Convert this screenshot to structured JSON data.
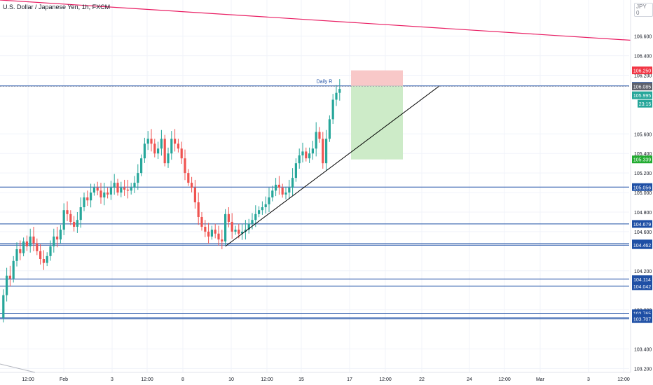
{
  "title": "U.S. Dollar / Japanese Yen, 1h, FXCM",
  "currency_badge": "JPY 0",
  "colors": {
    "up": "#26a69a",
    "down": "#ef5350",
    "hline": "#1e4fa5",
    "trendline": "#000000",
    "long_trend": "#e91e63",
    "stop_zone": "#f8c8c8",
    "target_zone": "#cdebc8"
  },
  "chart_data": {
    "type": "candlestick",
    "title": "U.S. Dollar / Japanese Yen, 1h, FXCM",
    "ylim": [
      103.16,
      106.97
    ],
    "x_ticks": [
      "12:00",
      "Feb",
      "3",
      "12:00",
      "8",
      "10",
      "12:00",
      "15",
      "17",
      "12:00",
      "22",
      "24",
      "12:00",
      "Mar",
      "3",
      "12:00"
    ],
    "y_ticks": [
      106.6,
      106.4,
      106.2,
      105.6,
      105.4,
      105.2,
      105.0,
      104.8,
      104.6,
      104.2,
      103.8,
      103.4,
      103.2
    ],
    "horizontal_levels": [
      106.091,
      105.056,
      104.679,
      104.479,
      104.462,
      104.114,
      104.042,
      103.765,
      103.719,
      103.707
    ],
    "price_labels": [
      {
        "value": 106.25,
        "text": "106.250",
        "kind": "stop"
      },
      {
        "value": 106.091,
        "text": "106.091",
        "kind": "level"
      },
      {
        "value": 106.085,
        "text": "106.085",
        "kind": "last"
      },
      {
        "value": 105.995,
        "text": "105.995",
        "kind": "current"
      },
      {
        "value": 105.339,
        "text": "105.339",
        "kind": "target"
      },
      {
        "value": 105.056,
        "text": "105.056",
        "kind": "level"
      },
      {
        "value": 104.679,
        "text": "104.679",
        "kind": "level"
      },
      {
        "value": 104.479,
        "text": "104.479",
        "kind": "level"
      },
      {
        "value": 104.462,
        "text": "104.462",
        "kind": "level"
      },
      {
        "value": 104.114,
        "text": "104.114",
        "kind": "level"
      },
      {
        "value": 104.042,
        "text": "104.042",
        "kind": "level"
      },
      {
        "value": 103.765,
        "text": "103.765",
        "kind": "level"
      },
      {
        "value": 103.719,
        "text": "103.719",
        "kind": "level"
      },
      {
        "value": 103.707,
        "text": "103.707",
        "kind": "level"
      }
    ],
    "countdown_label": "23:15",
    "annotation": {
      "text": "Daily R",
      "value": 106.091
    },
    "position": {
      "entry": 106.091,
      "stop": 106.25,
      "target": 105.339
    },
    "close_path": [
      [
        0,
        103.72
      ],
      [
        2,
        103.95
      ],
      [
        4,
        104.15
      ],
      [
        6,
        104.12
      ],
      [
        8,
        104.3
      ],
      [
        10,
        104.42
      ],
      [
        12,
        104.38
      ],
      [
        14,
        104.5
      ],
      [
        16,
        104.45
      ],
      [
        18,
        104.55
      ],
      [
        20,
        104.48
      ],
      [
        22,
        104.4
      ],
      [
        24,
        104.32
      ],
      [
        26,
        104.28
      ],
      [
        28,
        104.35
      ],
      [
        30,
        104.45
      ],
      [
        32,
        104.55
      ],
      [
        34,
        104.52
      ],
      [
        36,
        104.62
      ],
      [
        38,
        104.82
      ],
      [
        40,
        104.78
      ],
      [
        42,
        104.7
      ],
      [
        44,
        104.65
      ],
      [
        46,
        104.72
      ],
      [
        48,
        104.85
      ],
      [
        50,
        104.95
      ],
      [
        52,
        104.92
      ],
      [
        54,
        105.0
      ],
      [
        56,
        105.05
      ],
      [
        58,
        105.02
      ],
      [
        60,
        104.95
      ],
      [
        62,
        105.0
      ],
      [
        64,
        104.98
      ],
      [
        66,
        105.05
      ],
      [
        68,
        105.1
      ],
      [
        70,
        105.0
      ],
      [
        72,
        105.05
      ],
      [
        74,
        105.03
      ],
      [
        76,
        105.02
      ],
      [
        78,
        105.05
      ],
      [
        80,
        105.1
      ],
      [
        82,
        105.2
      ],
      [
        84,
        105.35
      ],
      [
        86,
        105.5
      ],
      [
        88,
        105.55
      ],
      [
        90,
        105.5
      ],
      [
        92,
        105.4
      ],
      [
        94,
        105.45
      ],
      [
        96,
        105.55
      ],
      [
        98,
        105.3
      ],
      [
        100,
        105.4
      ],
      [
        102,
        105.55
      ],
      [
        104,
        105.5
      ],
      [
        106,
        105.45
      ],
      [
        108,
        105.35
      ],
      [
        110,
        105.2
      ],
      [
        112,
        105.1
      ],
      [
        114,
        105.05
      ],
      [
        116,
        104.9
      ],
      [
        118,
        104.75
      ],
      [
        120,
        104.65
      ],
      [
        122,
        104.6
      ],
      [
        124,
        104.55
      ],
      [
        126,
        104.62
      ],
      [
        128,
        104.58
      ],
      [
        130,
        104.52
      ],
      [
        132,
        104.5
      ],
      [
        134,
        104.78
      ],
      [
        136,
        104.7
      ],
      [
        138,
        104.6
      ],
      [
        140,
        104.62
      ],
      [
        142,
        104.58
      ],
      [
        144,
        104.6
      ],
      [
        146,
        104.62
      ],
      [
        148,
        104.68
      ],
      [
        150,
        104.72
      ],
      [
        152,
        104.78
      ],
      [
        154,
        104.82
      ],
      [
        156,
        104.85
      ],
      [
        158,
        104.88
      ],
      [
        160,
        104.95
      ],
      [
        162,
        105.02
      ],
      [
        164,
        105.08
      ],
      [
        166,
        105.05
      ],
      [
        168,
        104.98
      ],
      [
        170,
        105.0
      ],
      [
        172,
        105.05
      ],
      [
        174,
        105.15
      ],
      [
        176,
        105.3
      ],
      [
        178,
        105.38
      ],
      [
        180,
        105.42
      ],
      [
        182,
        105.35
      ],
      [
        184,
        105.4
      ],
      [
        186,
        105.45
      ],
      [
        188,
        105.62
      ],
      [
        190,
        105.55
      ],
      [
        192,
        105.3
      ],
      [
        194,
        105.55
      ],
      [
        196,
        105.75
      ],
      [
        198,
        105.95
      ],
      [
        200,
        106.02
      ],
      [
        202,
        106.06
      ]
    ],
    "trendline_support": {
      "from": [
        134,
        104.45
      ],
      "to": [
        290,
        106.09
      ]
    },
    "trendline_long": {
      "from": [
        0,
        106.97
      ],
      "to": [
        940,
        106.54
      ]
    }
  }
}
